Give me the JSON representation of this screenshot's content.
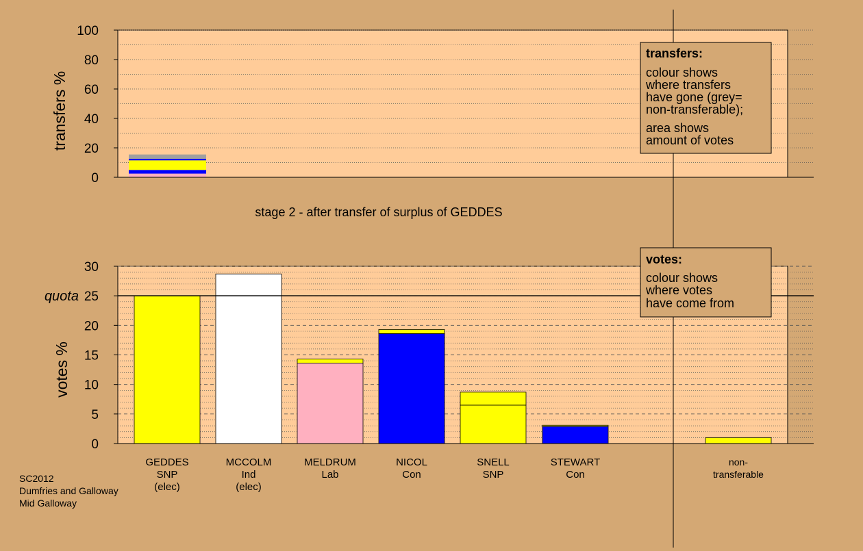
{
  "colors": {
    "background": "#d4a874",
    "plot_fill": "#ffcc99",
    "snp": "#ffff00",
    "ind": "#ffffff",
    "lab": "#ffb0c0",
    "con": "#0000ff",
    "nontransferable": "#a0a0a0"
  },
  "stage_title": "stage 2 - after transfer of surplus of GEDDES",
  "footer": {
    "line1": "SC2012",
    "line2": "Dumfries and Galloway",
    "line3": "Mid Galloway"
  },
  "transfers_legend": {
    "title": "transfers:",
    "text1": [
      "colour shows",
      "where transfers",
      "have gone (grey=",
      "non-transferable);"
    ],
    "text2": [
      "area shows",
      "amount of votes"
    ]
  },
  "votes_legend": {
    "title": "votes:",
    "text": [
      "colour shows",
      "where votes",
      "have come from"
    ]
  },
  "chart_data": [
    {
      "type": "bar",
      "name": "transfers",
      "ylabel": "transfers %",
      "ylim": [
        0,
        100
      ],
      "yticks": [
        0,
        20,
        40,
        60,
        80,
        100
      ],
      "grid": true,
      "bars": [
        {
          "candidate": "GEDDES",
          "segments": [
            {
              "to": "MELDRUM",
              "color": "#ffb0c0",
              "value": 2.5
            },
            {
              "to": "NICOL",
              "color": "#0000ff",
              "value": 2.5
            },
            {
              "to": "SNELL",
              "color": "#ffff00",
              "value": 6.5
            },
            {
              "to": "STEWART",
              "color": "#0000ff",
              "value": 1.0
            },
            {
              "to": "non-transferable",
              "color": "#a0a0a0",
              "value": 3.0
            }
          ]
        }
      ]
    },
    {
      "type": "bar",
      "name": "votes",
      "ylabel": "votes %",
      "ylim": [
        0,
        30
      ],
      "yticks": [
        0,
        5,
        10,
        15,
        20,
        25,
        30
      ],
      "quota": 25,
      "quota_label": "quota",
      "grid": true,
      "categories": [
        {
          "name": "GEDDES",
          "party": "SNP",
          "status": "(elec)"
        },
        {
          "name": "MCCOLM",
          "party": "Ind",
          "status": "(elec)"
        },
        {
          "name": "MELDRUM",
          "party": "Lab",
          "status": ""
        },
        {
          "name": "NICOL",
          "party": "Con",
          "status": ""
        },
        {
          "name": "SNELL",
          "party": "SNP",
          "status": ""
        },
        {
          "name": "STEWART",
          "party": "Con",
          "status": ""
        },
        {
          "name": "non-",
          "party": "transferable",
          "status": ""
        }
      ],
      "bars": [
        {
          "candidate": "GEDDES",
          "segments": [
            {
              "color": "#ffff00",
              "value": 25.0
            }
          ]
        },
        {
          "candidate": "MCCOLM",
          "segments": [
            {
              "color": "#ffffff",
              "value": 28.7
            }
          ]
        },
        {
          "candidate": "MELDRUM",
          "segments": [
            {
              "color": "#ffb0c0",
              "value": 13.6
            },
            {
              "color": "#ffff00",
              "value": 0.7
            }
          ]
        },
        {
          "candidate": "NICOL",
          "segments": [
            {
              "color": "#0000ff",
              "value": 18.6
            },
            {
              "color": "#ffff00",
              "value": 0.7
            }
          ]
        },
        {
          "candidate": "SNELL",
          "segments": [
            {
              "color": "#ffff00",
              "value": 6.5
            },
            {
              "color": "#ffff00",
              "value": 2.2
            }
          ]
        },
        {
          "candidate": "STEWART",
          "segments": [
            {
              "color": "#0000ff",
              "value": 2.9
            },
            {
              "color": "#ffff00",
              "value": 0.2
            }
          ]
        },
        {
          "candidate": "non-transferable",
          "segments": [
            {
              "color": "#ffff00",
              "value": 1.0
            }
          ]
        }
      ]
    }
  ]
}
